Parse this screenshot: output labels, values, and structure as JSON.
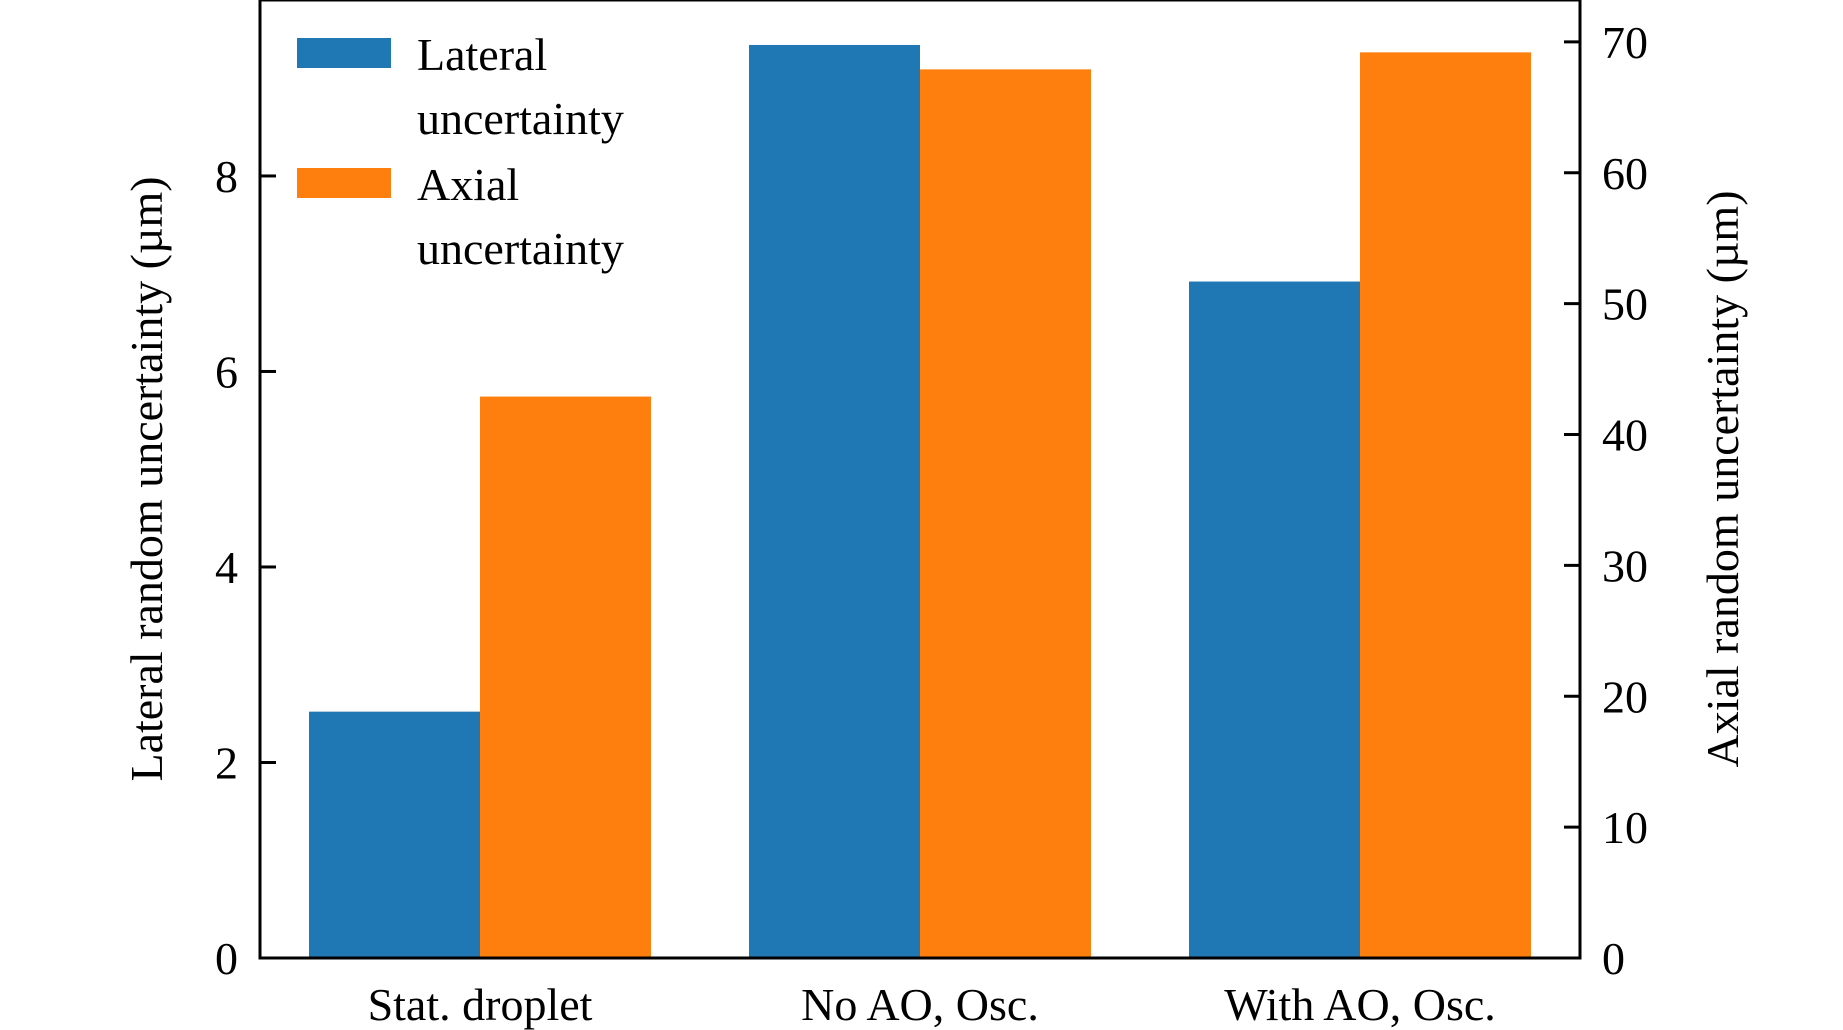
{
  "chart_data": {
    "type": "bar",
    "categories": [
      "Stat. droplet",
      "No AO, Osc.",
      "With AO, Osc."
    ],
    "series": [
      {
        "name": "Lateral uncertainty",
        "legend_lines": [
          "Lateral",
          "uncertainty"
        ],
        "axis": "left",
        "color": "#1f77b4",
        "values": [
          2.52,
          9.34,
          6.92
        ]
      },
      {
        "name": "Axial uncertainty",
        "legend_lines": [
          "Axial",
          "uncertainty"
        ],
        "axis": "right",
        "color": "#ff7f0e",
        "values": [
          42.9,
          67.9,
          69.2
        ]
      }
    ],
    "ylabel_left": "Lateral random uncertainty (µm)",
    "ylabel_right": "Axial random uncertainty (µm)",
    "xlabel": "",
    "title": "",
    "ylim_left": [
      0,
      9.8
    ],
    "ylim_right": [
      0,
      73.2
    ],
    "yticks_left": [
      0,
      2,
      4,
      6,
      8
    ],
    "yticks_right": [
      0,
      10,
      20,
      30,
      40,
      50,
      60,
      70
    ],
    "grid": false,
    "legend_position": "top-left"
  }
}
